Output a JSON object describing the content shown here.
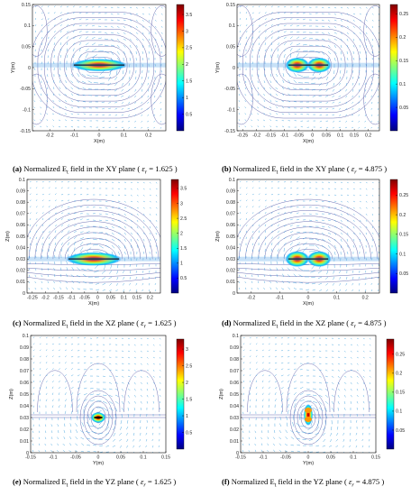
{
  "colors": {
    "colormap": [
      "#00007f",
      "#0000ff",
      "#007fff",
      "#00ffff",
      "#7fff7f",
      "#ffff00",
      "#ff7f00",
      "#ff0000",
      "#7f0000"
    ],
    "contour_line": "#3a3f9a",
    "vector_arrow": "#1a8fd6"
  },
  "panels": [
    {
      "id": "a",
      "caption": {
        "label": "(a)",
        "text": "Normalized E",
        "sub": "t",
        "rest": " field in the XY plane",
        "eps_value": "1.625"
      },
      "xlabel": "X(m)",
      "ylabel": "Y(m)",
      "xticks": [
        "-0.2",
        "-0.1",
        "0",
        "0.1",
        "0.2"
      ],
      "yticks": [
        "0.15",
        "0.1",
        "0.05",
        "0",
        "-0.05",
        "-0.1",
        "-0.15"
      ],
      "colorbar_ticks": [
        "3.5",
        "3",
        "2.5",
        "2",
        "1.5",
        "1",
        "0.5"
      ],
      "xlim": [
        -0.27,
        0.27
      ],
      "ylim": [
        -0.15,
        0.15
      ],
      "colorbar_range": [
        0,
        3.8
      ]
    },
    {
      "id": "b",
      "caption": {
        "label": "(b)",
        "text": "Normalized E",
        "sub": "t",
        "rest": " field in the XY plane",
        "eps_value": "4.875"
      },
      "xlabel": "X(m)",
      "ylabel": "Y(m)",
      "xticks": [
        "-0.25",
        "-0.2",
        "-0.15",
        "-0.1",
        "-0.05",
        "0",
        "0.05",
        "0.1",
        "0.15",
        "0.2"
      ],
      "yticks": [
        "0.15",
        "0.1",
        "0.05",
        "0",
        "-0.05",
        "-0.1",
        "-0.15"
      ],
      "colorbar_ticks": [
        "0.25",
        "0.2",
        "0.15",
        "0.1",
        "0.05"
      ],
      "xlim": [
        -0.27,
        0.24
      ],
      "ylim": [
        -0.15,
        0.15
      ],
      "colorbar_range": [
        0,
        0.27
      ]
    },
    {
      "id": "c",
      "caption": {
        "label": "(c)",
        "text": "Normalized E",
        "sub": "t",
        "rest": " field in the XZ plane",
        "eps_value": "1.625"
      },
      "xlabel": "X(m)",
      "ylabel": "Z(m)",
      "xticks": [
        "-0.25",
        "-0.2",
        "-0.15",
        "-0.1",
        "-0.05",
        "0",
        "0.05",
        "0.1",
        "0.15",
        "0.2"
      ],
      "yticks": [
        "0.1",
        "0.09",
        "0.08",
        "0.07",
        "0.06",
        "0.05",
        "0.04",
        "0.03",
        "0.02",
        "0.01",
        "0"
      ],
      "colorbar_ticks": [
        "3.5",
        "3",
        "2.5",
        "2",
        "1.5",
        "1",
        "0.5"
      ],
      "xlim": [
        -0.27,
        0.24
      ],
      "ylim": [
        0,
        0.1
      ],
      "colorbar_range": [
        0,
        3.8
      ]
    },
    {
      "id": "d",
      "caption": {
        "label": "(d)",
        "text": "Normalized E",
        "sub": "t",
        "rest": " field in the XZ plane",
        "eps_value": "4.875"
      },
      "xlabel": "X(m)",
      "ylabel": "Z(m)",
      "xticks": [
        "-0.2",
        "-0.1",
        "0",
        "0.1",
        "0.2"
      ],
      "yticks": [
        "0.1",
        "0.09",
        "0.08",
        "0.07",
        "0.06",
        "0.05",
        "0.04",
        "0.03",
        "0.02",
        "0.01",
        "0"
      ],
      "colorbar_ticks": [
        "0.25",
        "0.2",
        "0.15",
        "0.1",
        "0.05"
      ],
      "xlim": [
        -0.25,
        0.25
      ],
      "ylim": [
        0,
        0.1
      ],
      "colorbar_range": [
        0,
        0.29
      ]
    },
    {
      "id": "e",
      "caption": {
        "label": "(e)",
        "text": "Normalized E",
        "sub": "t",
        "rest": " field in the YZ plane",
        "eps_value": "1.625"
      },
      "xlabel": "Y(m)",
      "ylabel": "Z(m)",
      "xticks": [
        "-0.15",
        "-0.1",
        "-0.05",
        "0",
        "0.05",
        "0.1",
        "0.15"
      ],
      "yticks": [
        "0.1",
        "0.09",
        "0.08",
        "0.07",
        "0.06",
        "0.05",
        "0.04",
        "0.03",
        "0.02",
        "0.01",
        "0"
      ],
      "colorbar_ticks": [
        "3",
        "2.5",
        "2",
        "1.5",
        "1",
        "0.5"
      ],
      "xlim": [
        -0.15,
        0.15
      ],
      "ylim": [
        0,
        0.1
      ],
      "colorbar_range": [
        0,
        3.3
      ]
    },
    {
      "id": "f",
      "caption": {
        "label": "(f)",
        "text": "Normalized E",
        "sub": "t",
        "rest": " field in the YZ plane",
        "eps_value": "4.875"
      },
      "xlabel": "Y(m)",
      "ylabel": "Z(m)",
      "xticks": [
        "-0.15",
        "-0.1",
        "-0.05",
        "0",
        "0.05",
        "0.1",
        "0.15"
      ],
      "yticks": [
        "0.1",
        "0.09",
        "0.08",
        "0.07",
        "0.06",
        "0.05",
        "0.04",
        "0.03",
        "0.02",
        "0.01",
        "0"
      ],
      "colorbar_ticks": [
        "0.25",
        "0.2",
        "0.15",
        "0.1",
        "0.05"
      ],
      "xlim": [
        -0.15,
        0.15
      ],
      "ylim": [
        0,
        0.1
      ],
      "colorbar_range": [
        0,
        0.29
      ]
    }
  ]
}
